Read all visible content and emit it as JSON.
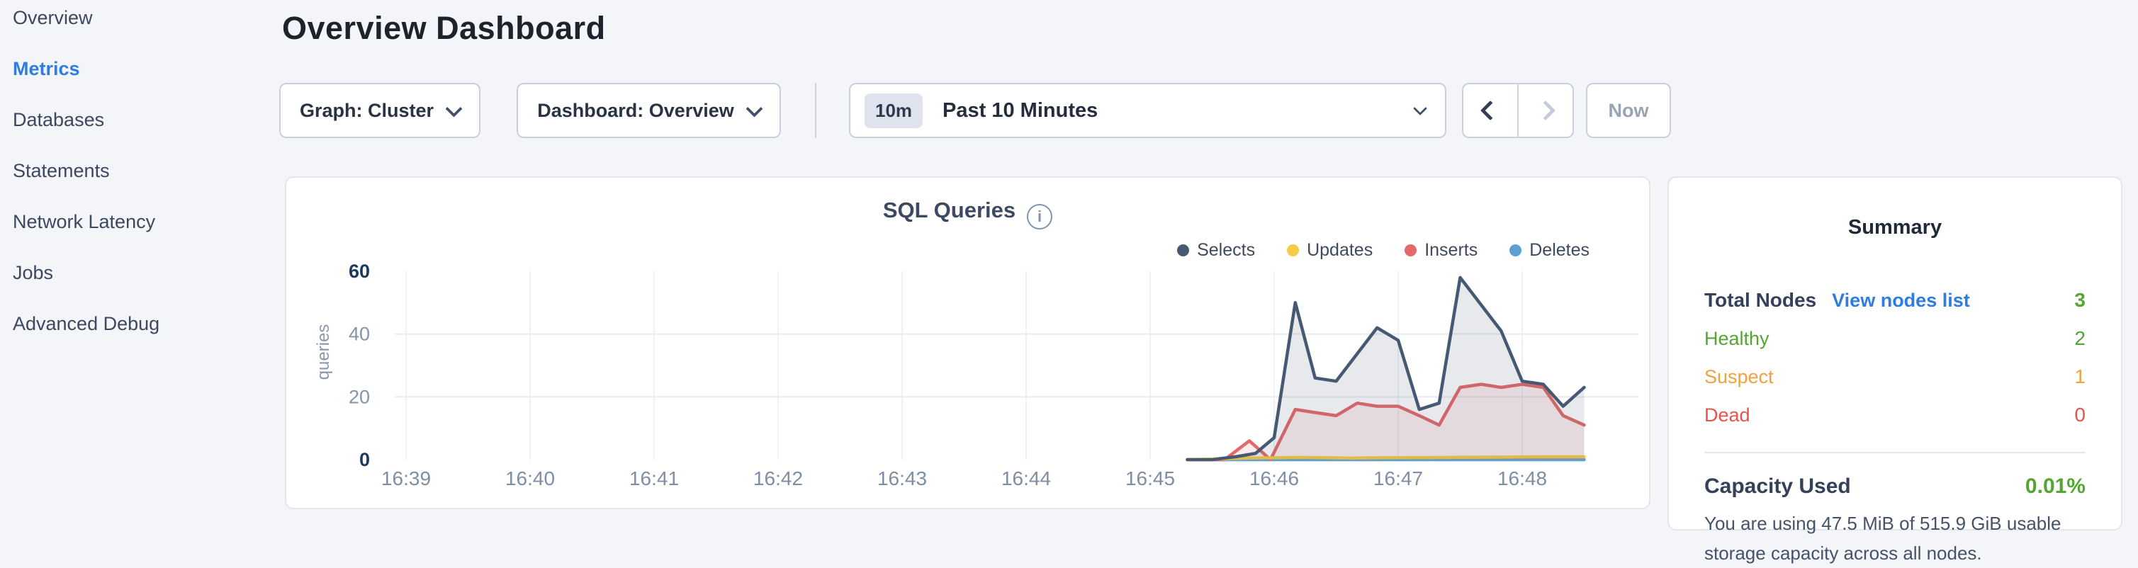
{
  "accent_color": "#2f7de1",
  "sidebar": {
    "items": [
      {
        "label": "Overview",
        "active": false
      },
      {
        "label": "Metrics",
        "active": true
      },
      {
        "label": "Databases",
        "active": false
      },
      {
        "label": "Statements",
        "active": false
      },
      {
        "label": "Network Latency",
        "active": false
      },
      {
        "label": "Jobs",
        "active": false
      },
      {
        "label": "Advanced Debug",
        "active": false
      }
    ]
  },
  "header": {
    "title": "Overview Dashboard"
  },
  "toolbar": {
    "graph_dropdown": "Graph: Cluster",
    "dashboard_dropdown": "Dashboard: Overview",
    "time_badge": "10m",
    "time_label": "Past 10 Minutes",
    "back_arrow_enabled": true,
    "forward_arrow_enabled": false,
    "now_button": "Now"
  },
  "chart_data": {
    "type": "area",
    "title": "SQL Queries",
    "ylabel": "queries",
    "xlabel": "",
    "x_tick_labels": [
      "16:39",
      "16:40",
      "16:41",
      "16:42",
      "16:43",
      "16:44",
      "16:45",
      "16:46",
      "16:47",
      "16:48"
    ],
    "x_unit": "minutes after 16:39",
    "y_ticks": [
      0,
      20,
      40,
      60
    ],
    "ylim": [
      0,
      60
    ],
    "grid": true,
    "legend_position": "top-right",
    "series": [
      {
        "name": "Selects",
        "color": "#475872",
        "fill": "rgba(71,88,114,0.13)",
        "points": [
          [
            6.3,
            0
          ],
          [
            6.5,
            0
          ],
          [
            6.7,
            1
          ],
          [
            6.85,
            2
          ],
          [
            7.0,
            7
          ],
          [
            7.17,
            50
          ],
          [
            7.33,
            26
          ],
          [
            7.5,
            25
          ],
          [
            7.83,
            42
          ],
          [
            8.0,
            38
          ],
          [
            8.17,
            16
          ],
          [
            8.33,
            18
          ],
          [
            8.5,
            58
          ],
          [
            8.83,
            41
          ],
          [
            9.0,
            25
          ],
          [
            9.17,
            24
          ],
          [
            9.33,
            17
          ],
          [
            9.5,
            23
          ]
        ]
      },
      {
        "name": "Updates",
        "color": "#f6cb45",
        "fill": "rgba(246,203,69,0.15)",
        "points": [
          [
            6.3,
            0
          ],
          [
            6.8,
            0.5
          ],
          [
            7.2,
            0.7
          ],
          [
            7.6,
            0.5
          ],
          [
            8.0,
            0.6
          ],
          [
            8.4,
            0.7
          ],
          [
            8.8,
            0.8
          ],
          [
            9.2,
            0.9
          ],
          [
            9.5,
            0.9
          ]
        ]
      },
      {
        "name": "Inserts",
        "color": "#e5696a",
        "fill": "rgba(229,105,106,0.12)",
        "points": [
          [
            6.3,
            0
          ],
          [
            6.6,
            0
          ],
          [
            6.8,
            6
          ],
          [
            6.97,
            0
          ],
          [
            7.17,
            16
          ],
          [
            7.33,
            15
          ],
          [
            7.5,
            14
          ],
          [
            7.67,
            18
          ],
          [
            7.83,
            17
          ],
          [
            8.0,
            17
          ],
          [
            8.17,
            14
          ],
          [
            8.33,
            11
          ],
          [
            8.5,
            23
          ],
          [
            8.67,
            24
          ],
          [
            8.83,
            23
          ],
          [
            9.0,
            24
          ],
          [
            9.17,
            23
          ],
          [
            9.33,
            14
          ],
          [
            9.5,
            11
          ]
        ]
      },
      {
        "name": "Deletes",
        "color": "#5b9fd3",
        "fill": "rgba(91,159,211,0.15)",
        "points": [
          [
            6.3,
            0
          ],
          [
            9.5,
            0
          ]
        ]
      }
    ]
  },
  "summary": {
    "heading": "Summary",
    "total_nodes_label": "Total Nodes",
    "view_nodes_link": "View nodes list",
    "total_nodes_value": "3",
    "total_nodes_color": "#55a532",
    "rows": [
      {
        "label": "Healthy",
        "value": "2",
        "color": "#55a532"
      },
      {
        "label": "Suspect",
        "value": "1",
        "color": "#f2a13c"
      },
      {
        "label": "Dead",
        "value": "0",
        "color": "#e5544d"
      }
    ],
    "capacity_label": "Capacity Used",
    "capacity_value": "0.01%",
    "capacity_color": "#55a532",
    "capacity_description": "You are using 47.5 MiB of 515.9 GiB usable storage capacity across all nodes."
  }
}
